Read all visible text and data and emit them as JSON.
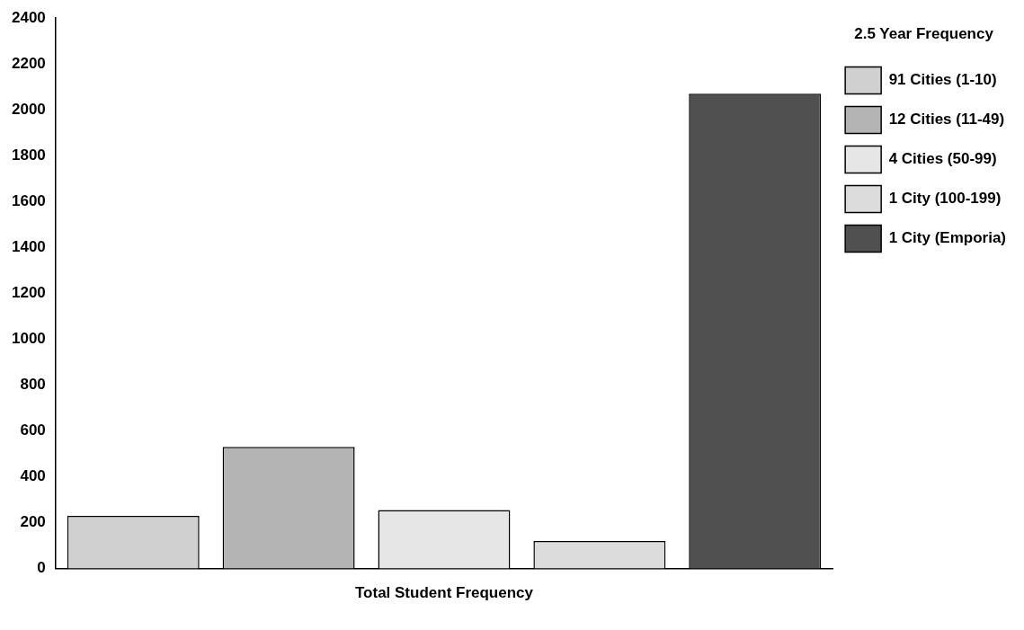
{
  "chart_data": {
    "type": "bar",
    "legend_title": "2.5 Year Frequency",
    "categories": [
      "Total Student Frequency"
    ],
    "series": [
      {
        "name": "91 Cities (1-10)",
        "color": "#d0d0d0",
        "values": [
          230
        ]
      },
      {
        "name": "12 Cities (11-49)",
        "color": "#b4b4b4",
        "values": [
          530
        ]
      },
      {
        "name": "4 Cities (50-99)",
        "color": "#e6e6e6",
        "values": [
          255
        ]
      },
      {
        "name": "1 City (100-199)",
        "color": "#dcdcdc",
        "values": [
          120
        ]
      },
      {
        "name": "1 City (Emporia)",
        "color": "#505050",
        "values": [
          2070
        ]
      }
    ],
    "ylim": [
      0,
      2400
    ],
    "yticks": [
      0,
      200,
      400,
      600,
      800,
      1000,
      1200,
      1400,
      1600,
      1800,
      2000,
      2200,
      2400
    ],
    "grid": false,
    "legend": "top right"
  }
}
